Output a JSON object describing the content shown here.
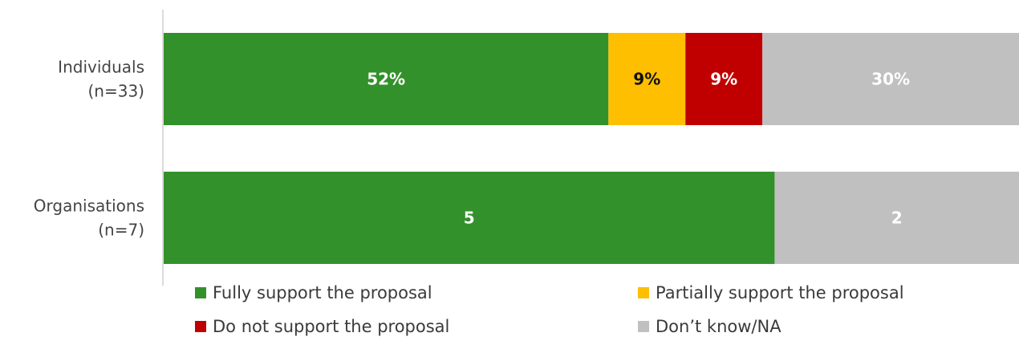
{
  "chart_data": {
    "type": "bar",
    "orientation": "horizontal",
    "stacked": true,
    "normalized": true,
    "categories": [
      [
        "Individuals",
        "(n=33)"
      ],
      [
        "Organisations",
        "(n=7)"
      ]
    ],
    "series": [
      {
        "name": "Fully support the proposal",
        "color": "#33912b",
        "label_color": "#ffffff",
        "values": [
          52,
          5
        ],
        "labels": [
          "52%",
          "5"
        ]
      },
      {
        "name": "Partially support the proposal",
        "color": "#fdbf00",
        "label_color": "#111111",
        "values": [
          9,
          0
        ],
        "labels": [
          "9%",
          ""
        ]
      },
      {
        "name": "Do not support the proposal",
        "color": "#c00000",
        "label_color": "#ffffff",
        "values": [
          9,
          0
        ],
        "labels": [
          "9%",
          ""
        ]
      },
      {
        "name": "Don’t know/NA",
        "color": "#c0c0c0",
        "label_color": "#ffffff",
        "values": [
          30,
          2
        ],
        "labels": [
          "30%",
          "2"
        ]
      }
    ],
    "title": "",
    "xlabel": "",
    "ylabel": "",
    "grid": false,
    "legend_position": "bottom"
  }
}
